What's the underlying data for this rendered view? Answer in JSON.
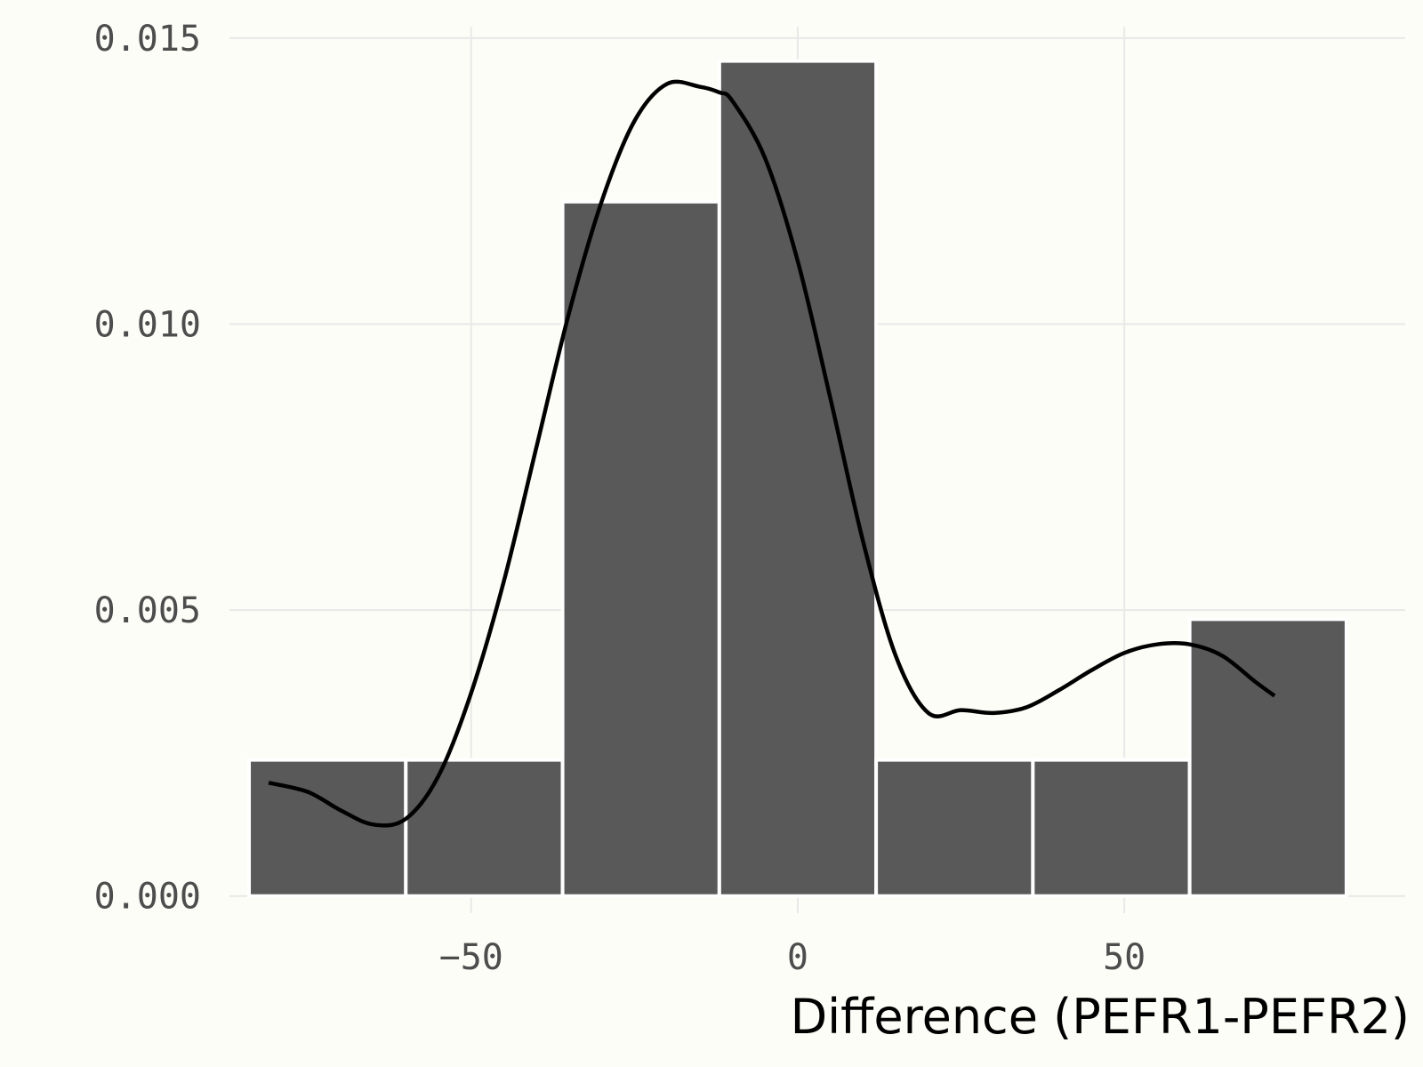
{
  "chart_data": {
    "type": "bar",
    "subtype": "histogram-with-density",
    "xlabel": "Difference (PEFR1-PEFR2)",
    "ylabel": "",
    "title": "",
    "xlim": [
      -87,
      93
    ],
    "ylim": [
      -0.0003,
      0.0152
    ],
    "x_ticks": [
      -50,
      0,
      50
    ],
    "x_tick_labels": [
      "−50",
      "0",
      "50"
    ],
    "y_ticks": [
      0,
      0.005,
      0.01,
      0.015
    ],
    "y_tick_labels": [
      "0.000",
      "0.005",
      "0.010",
      "0.015"
    ],
    "grid": true,
    "bins": [
      {
        "x0": -84,
        "x1": -60,
        "value": 0.00238
      },
      {
        "x0": -60,
        "x1": -36,
        "value": 0.00238
      },
      {
        "x0": -36,
        "x1": -12,
        "value": 0.01214
      },
      {
        "x0": -12,
        "x1": 12,
        "value": 0.0146
      },
      {
        "x0": 12,
        "x1": 36,
        "value": 0.00238
      },
      {
        "x0": 36,
        "x1": 60,
        "value": 0.00238
      },
      {
        "x0": 60,
        "x1": 84,
        "value": 0.00484
      }
    ],
    "density_curve": {
      "x": [
        -81,
        -75,
        -70,
        -65,
        -60,
        -55,
        -50,
        -45,
        -40,
        -35,
        -30,
        -25,
        -20,
        -15,
        -12,
        -10,
        -5,
        0,
        5,
        10,
        15,
        20,
        25,
        30,
        35,
        40,
        45,
        50,
        55,
        60,
        65,
        70,
        73
      ],
      "y": [
        0.00198,
        0.00182,
        0.0015,
        0.00125,
        0.00135,
        0.0021,
        0.00355,
        0.0055,
        0.00785,
        0.0102,
        0.01215,
        0.01355,
        0.0142,
        0.01415,
        0.01405,
        0.0139,
        0.0129,
        0.0111,
        0.0087,
        0.0062,
        0.0042,
        0.0032,
        0.00325,
        0.0032,
        0.0033,
        0.0036,
        0.00395,
        0.00425,
        0.0044,
        0.0044,
        0.0042,
        0.00375,
        0.0035
      ]
    },
    "colors": {
      "bar_fill": "#595959",
      "bar_stroke": "#ffffff",
      "curve": "#000000",
      "grid": "#e8e8e8",
      "background": "#fdfdf7"
    }
  }
}
